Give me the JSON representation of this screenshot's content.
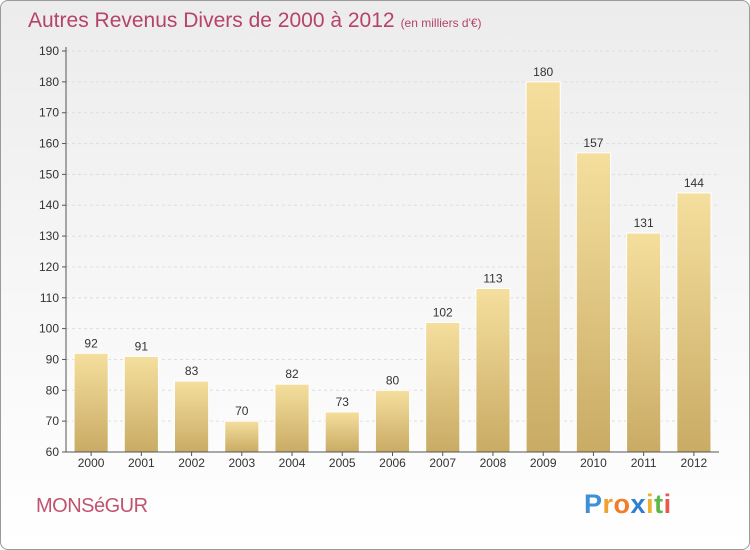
{
  "title": "Autres Revenus Divers de 2000 à 2012",
  "subtitle": "(en milliers d'€)",
  "location": "MONSéGUR",
  "logo": "Proxiti",
  "colors": {
    "title": "#b5436a",
    "bar_light": "#f3dc9a",
    "bar_dark": "#c9ac66"
  },
  "chart_data": {
    "type": "bar",
    "title": "Autres Revenus Divers de 2000 à 2012",
    "subtitle": "(en milliers d'€)",
    "xlabel": "",
    "ylabel": "",
    "categories": [
      "2000",
      "2001",
      "2002",
      "2003",
      "2004",
      "2005",
      "2006",
      "2007",
      "2008",
      "2009",
      "2010",
      "2011",
      "2012"
    ],
    "values": [
      92,
      91,
      83,
      70,
      82,
      73,
      80,
      102,
      113,
      180,
      157,
      131,
      144
    ],
    "ylim": [
      60,
      190
    ],
    "yticks": [
      60,
      70,
      80,
      90,
      100,
      110,
      120,
      130,
      140,
      150,
      160,
      170,
      180,
      190
    ],
    "grid": true,
    "legend": "none"
  }
}
